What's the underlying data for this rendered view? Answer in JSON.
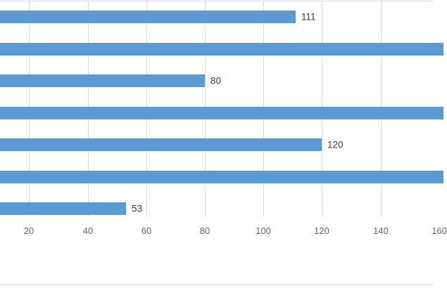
{
  "chart_data": {
    "type": "bar",
    "orientation": "horizontal",
    "title": "",
    "xlabel": "",
    "ylabel": "",
    "grid": "vertical-only",
    "legend": "none",
    "value_axis_origin_offscreen_left": true,
    "category_labels_offscreen_left": true,
    "bars": [
      {
        "value": 111,
        "data_label": "111",
        "clipped_at_right_edge": false
      },
      {
        "value": null,
        "data_label": null,
        "clipped_at_right_edge": true
      },
      {
        "value": 80,
        "data_label": "80",
        "clipped_at_right_edge": false
      },
      {
        "value": null,
        "data_label": null,
        "clipped_at_right_edge": true
      },
      {
        "value": 120,
        "data_label": "120",
        "clipped_at_right_edge": false
      },
      {
        "value": null,
        "data_label": null,
        "clipped_at_right_edge": true
      },
      {
        "value": 53,
        "data_label": "53",
        "clipped_at_right_edge": false
      }
    ],
    "x_axis": {
      "ticks": [
        20,
        40,
        60,
        80,
        100,
        120,
        140,
        160
      ],
      "last_tick_partially_visible": true
    },
    "colors": {
      "bar": "#5b9bd5",
      "gridline": "#d9d9d9",
      "tick_label": "#666666",
      "data_label": "#3a3a3a",
      "chart_border": "#d9d9d9",
      "background": "#ffffff"
    }
  }
}
